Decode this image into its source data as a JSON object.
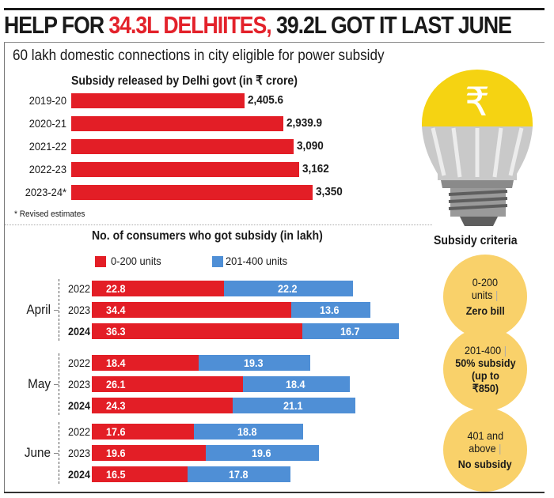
{
  "headline": {
    "part1": "HELP FOR ",
    "highlight": "34.3L DELHIITES,",
    "part2": " 39.2L GOT IT LAST JUNE"
  },
  "subtitle": "60 lakh domestic connections in city eligible for power subsidy",
  "colors": {
    "red": "#e31e26",
    "blue": "#4f8fd6",
    "circle": "#f9d16a",
    "bulb_yellow": "#f5d312",
    "bulb_grey": "#c9c9c9"
  },
  "bulb": {
    "icon": "rupee-lightbulb-icon",
    "symbol": "₹"
  },
  "criteria": {
    "title": "Subsidy criteria",
    "items": [
      {
        "lines": [
          "0-200",
          "units |"
        ],
        "bold_lines": [
          "Zero bill"
        ]
      },
      {
        "lines": [
          "201-400 |"
        ],
        "bold_lines": [
          "50% subsidy",
          "(up to",
          "₹850)"
        ]
      },
      {
        "lines": [
          "401 and",
          "above |"
        ],
        "bold_lines": [
          "No subsidy"
        ]
      }
    ]
  },
  "chart_data": [
    {
      "type": "bar",
      "orientation": "horizontal",
      "title": "Subsidy released by Delhi govt (in ₹ crore)",
      "categories": [
        "2019-20",
        "2020-21",
        "2021-22",
        "2022-23",
        "2023-24*"
      ],
      "values": [
        2405.6,
        2939.9,
        3090,
        3162,
        3350
      ],
      "value_labels": [
        "2,405.6",
        "2,939.9",
        "3,090",
        "3,162",
        "3,350"
      ],
      "footnote": "* Revised estimates",
      "xlim": [
        0,
        3350
      ]
    },
    {
      "type": "bar",
      "orientation": "horizontal",
      "stacked": true,
      "title": "No. of consumers who got subsidy (in lakh)",
      "legend": [
        {
          "name": "0-200 units",
          "color": "#e31e26"
        },
        {
          "name": "201-400 units",
          "color": "#4f8fd6"
        }
      ],
      "legend_position": "top",
      "groups": [
        {
          "month": "April",
          "rows": [
            {
              "year": "2022",
              "bold": false,
              "values": [
                22.8,
                22.2
              ]
            },
            {
              "year": "2023",
              "bold": false,
              "values": [
                34.4,
                13.6
              ]
            },
            {
              "year": "2024",
              "bold": true,
              "values": [
                36.3,
                16.7
              ]
            }
          ]
        },
        {
          "month": "May",
          "rows": [
            {
              "year": "2022",
              "bold": false,
              "values": [
                18.4,
                19.3
              ]
            },
            {
              "year": "2023",
              "bold": false,
              "values": [
                26.1,
                18.4
              ]
            },
            {
              "year": "2024",
              "bold": true,
              "values": [
                24.3,
                21.1
              ]
            }
          ]
        },
        {
          "month": "June",
          "rows": [
            {
              "year": "2022",
              "bold": false,
              "values": [
                17.6,
                18.8
              ]
            },
            {
              "year": "2023",
              "bold": false,
              "values": [
                19.6,
                19.6
              ]
            },
            {
              "year": "2024",
              "bold": true,
              "values": [
                16.5,
                17.8
              ]
            }
          ]
        }
      ],
      "xlim": [
        0,
        55
      ]
    }
  ]
}
